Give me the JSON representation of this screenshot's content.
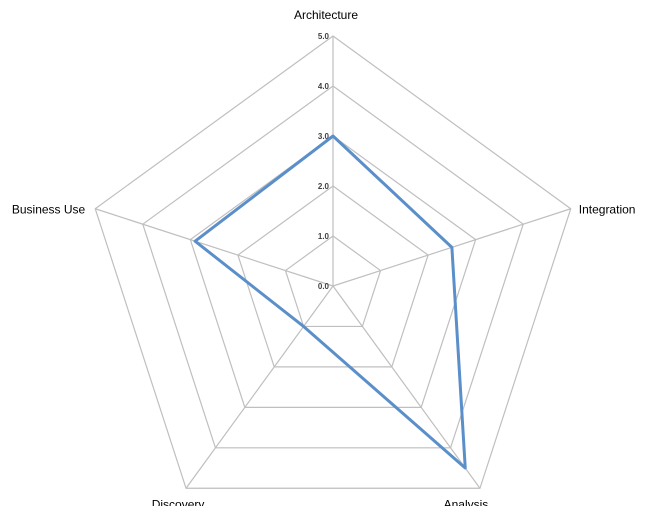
{
  "chart_data": {
    "type": "radar",
    "categories": [
      "Architecture",
      "Integration",
      "Analysis",
      "Discovery",
      "Business Use"
    ],
    "series": [
      {
        "values": [
          3.0,
          2.5,
          4.5,
          1.0,
          2.9
        ],
        "color": "#5b8fc9"
      }
    ],
    "rlim": [
      0,
      5
    ],
    "tick_labels": [
      "0.0",
      "1.0",
      "2.0",
      "3.0",
      "4.0",
      "5.0"
    ],
    "grid": true,
    "legend": "none",
    "grid_color": "#bfbfbf"
  }
}
